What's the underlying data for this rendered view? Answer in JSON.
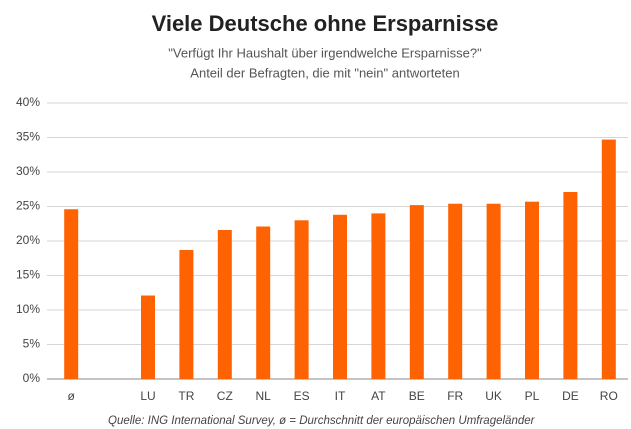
{
  "chart_data": {
    "type": "bar",
    "title": "Viele Deutsche ohne Ersparnisse",
    "subtitle": "\"Verfügt Ihr Haushalt über irgendwelche Ersparnisse?\"",
    "subtitle2": "Anteil der Befragten, die mit \"nein\" antworteten",
    "source": "Quelle: ING International Survey, ø = Durchschnitt der europäischen Umfrageländer",
    "categories": [
      "ø",
      null,
      "LU",
      "TR",
      "CZ",
      "NL",
      "ES",
      "IT",
      "AT",
      "BE",
      "FR",
      "UK",
      "PL",
      "DE",
      "RO"
    ],
    "values": [
      24.6,
      null,
      12.1,
      18.7,
      21.6,
      22.1,
      23.0,
      23.8,
      24.0,
      25.2,
      25.4,
      25.4,
      25.7,
      27.1,
      34.7
    ],
    "color": "#ff6200",
    "ylim": [
      0,
      40
    ],
    "yticks": [
      {
        "value": 0,
        "label": "0%"
      },
      {
        "value": 5,
        "label": "5%"
      },
      {
        "value": 10,
        "label": "10%"
      },
      {
        "value": 15,
        "label": "15%"
      },
      {
        "value": 20,
        "label": "20%"
      },
      {
        "value": 25,
        "label": "25%"
      },
      {
        "value": 30,
        "label": "30%"
      },
      {
        "value": 35,
        "label": "35%"
      },
      {
        "value": 40,
        "label": "40%"
      }
    ],
    "grid": true
  }
}
